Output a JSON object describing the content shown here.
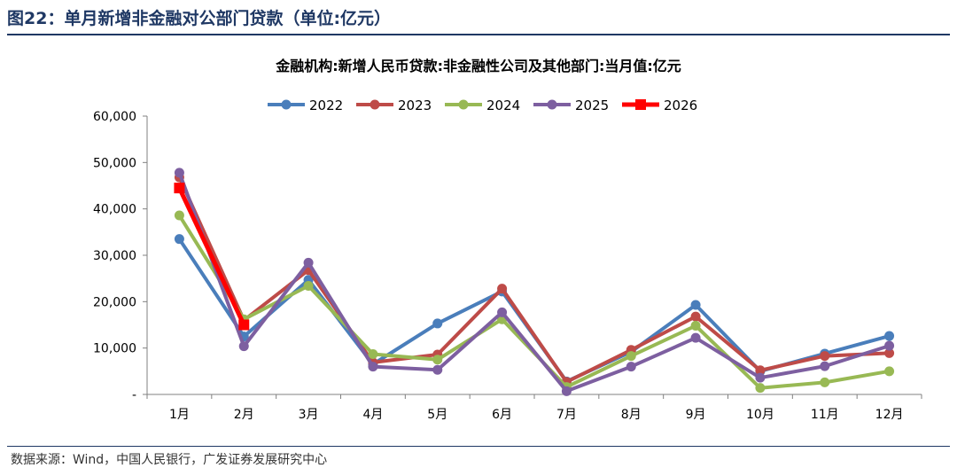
{
  "figure": {
    "title": "图22：单月新增非金融对公部门贷款（单位:亿元）",
    "source": "数据来源：Wind，中国人民银行，广发证券发展研究中心"
  },
  "chart_data": {
    "type": "line",
    "title": "金融机构:新增人民币贷款:非金融性公司及其他部门:当月值:亿元",
    "xlabel": "",
    "ylabel": "",
    "categories": [
      "1月",
      "2月",
      "3月",
      "4月",
      "5月",
      "6月",
      "7月",
      "8月",
      "9月",
      "10月",
      "11月",
      "12月"
    ],
    "ylim": [
      0,
      60000
    ],
    "yticks": [
      0,
      10000,
      20000,
      30000,
      40000,
      50000,
      60000
    ],
    "ytick_labels": [
      "-",
      "10,000",
      "20,000",
      "30,000",
      "40,000",
      "50,000",
      "60,000"
    ],
    "grid": false,
    "legend": "top-center",
    "series": [
      {
        "name": "2022",
        "color": "#4a7ebb",
        "marker": "circle",
        "values": [
          33500,
          12500,
          24700,
          6500,
          15300,
          22200,
          2800,
          9200,
          19300,
          5000,
          8800,
          12600
        ]
      },
      {
        "name": "2023",
        "color": "#be4b48",
        "marker": "circle",
        "values": [
          46800,
          16000,
          26800,
          6900,
          8600,
          22800,
          2700,
          9600,
          16800,
          5200,
          8300,
          8900
        ]
      },
      {
        "name": "2024",
        "color": "#98b954",
        "marker": "circle",
        "values": [
          38600,
          16200,
          23400,
          8700,
          7500,
          16200,
          1600,
          8300,
          14800,
          1400,
          2600,
          5000
        ]
      },
      {
        "name": "2025",
        "color": "#7d5fa0",
        "marker": "circle",
        "values": [
          47800,
          10400,
          28400,
          6000,
          5300,
          17700,
          700,
          6000,
          12200,
          3600,
          6100,
          10500
        ]
      },
      {
        "name": "2026",
        "color": "#ff0000",
        "marker": "square",
        "values": [
          44500,
          15000,
          null,
          null,
          null,
          null,
          null,
          null,
          null,
          null,
          null,
          null
        ]
      }
    ]
  }
}
